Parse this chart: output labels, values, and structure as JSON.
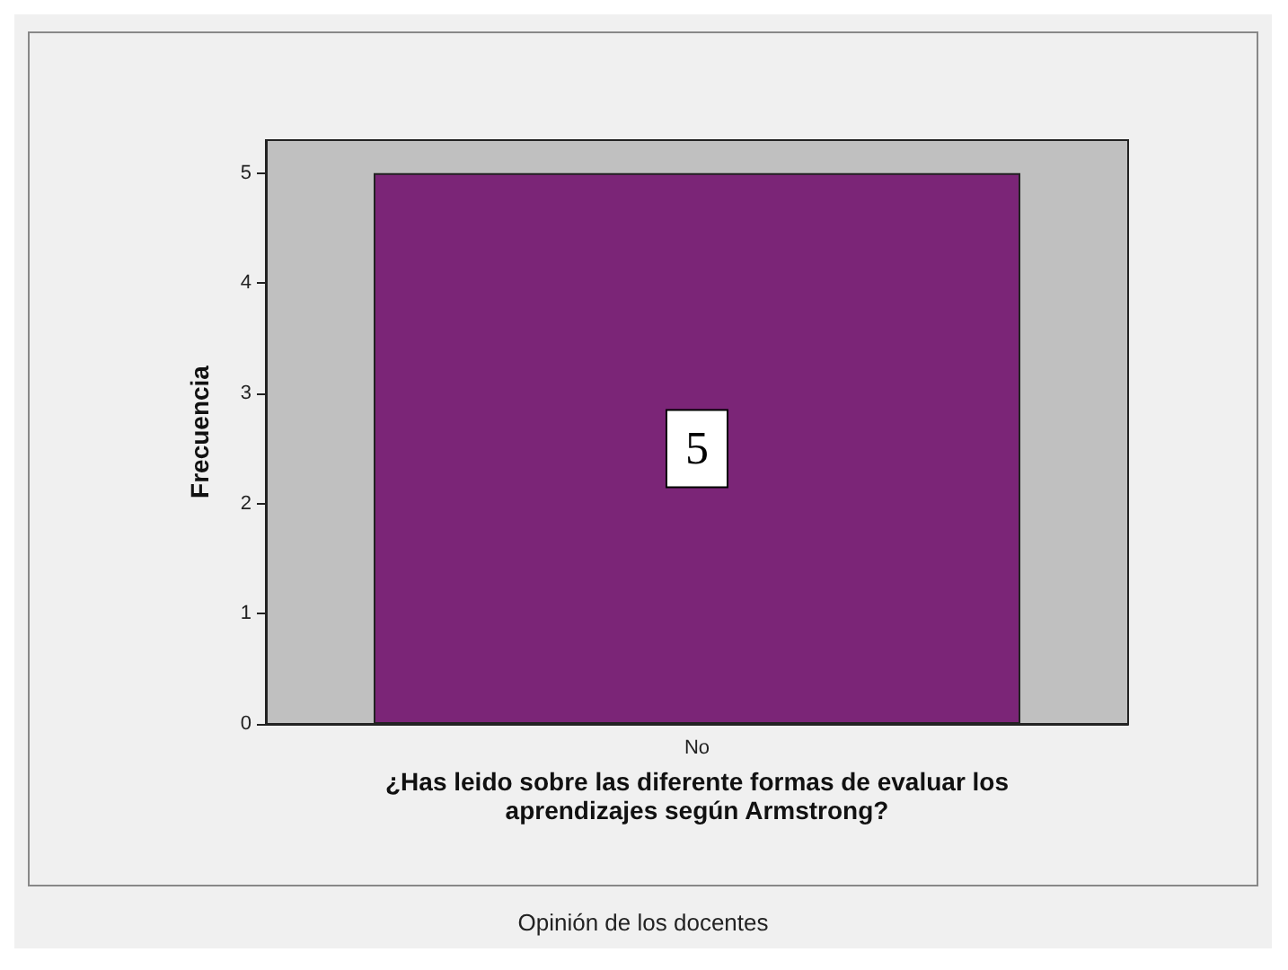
{
  "chart_data": {
    "type": "bar",
    "categories": [
      "No"
    ],
    "values": [
      5
    ],
    "color": "#7b2577",
    "ylabel": "Frecuencia",
    "xlabel": "¿Has leido sobre las diferente formas de evaluar los\naprendizajes según Armstrong?",
    "ylim": [
      0,
      5.3
    ],
    "yticks": [
      0,
      1,
      2,
      3,
      4,
      5
    ],
    "data_labels": true,
    "grid": false,
    "annotations": [
      "Opinión de los docentes"
    ]
  }
}
